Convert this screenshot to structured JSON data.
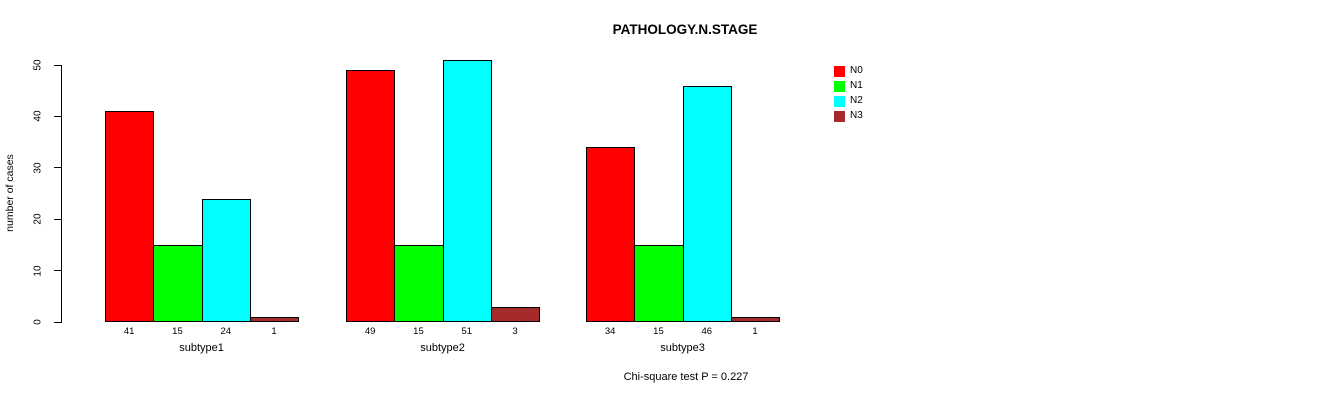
{
  "chart_data": {
    "type": "bar",
    "title": "PATHOLOGY.N.STAGE",
    "xlabel": "",
    "ylabel": "number of cases",
    "ylim": [
      0,
      50
    ],
    "yticks": [
      0,
      10,
      20,
      30,
      40,
      50
    ],
    "grid": false,
    "legend_position": "top-right",
    "categories": [
      "subtype1",
      "subtype2",
      "subtype3"
    ],
    "series": [
      {
        "name": "N0",
        "color": "#FF0000",
        "values": [
          41,
          49,
          34
        ]
      },
      {
        "name": "N1",
        "color": "#00FF00",
        "values": [
          15,
          15,
          15
        ]
      },
      {
        "name": "N2",
        "color": "#00FFFF",
        "values": [
          24,
          51,
          46
        ]
      },
      {
        "name": "N3",
        "color": "#A52A2A",
        "values": [
          1,
          3,
          1
        ]
      }
    ],
    "bar_value_labels": [
      [
        41,
        15,
        24,
        1
      ],
      [
        49,
        15,
        51,
        3
      ],
      [
        34,
        15,
        46,
        1
      ]
    ],
    "bar_border_color": "#000000",
    "annotation": "Chi-square test P = 0.227"
  }
}
